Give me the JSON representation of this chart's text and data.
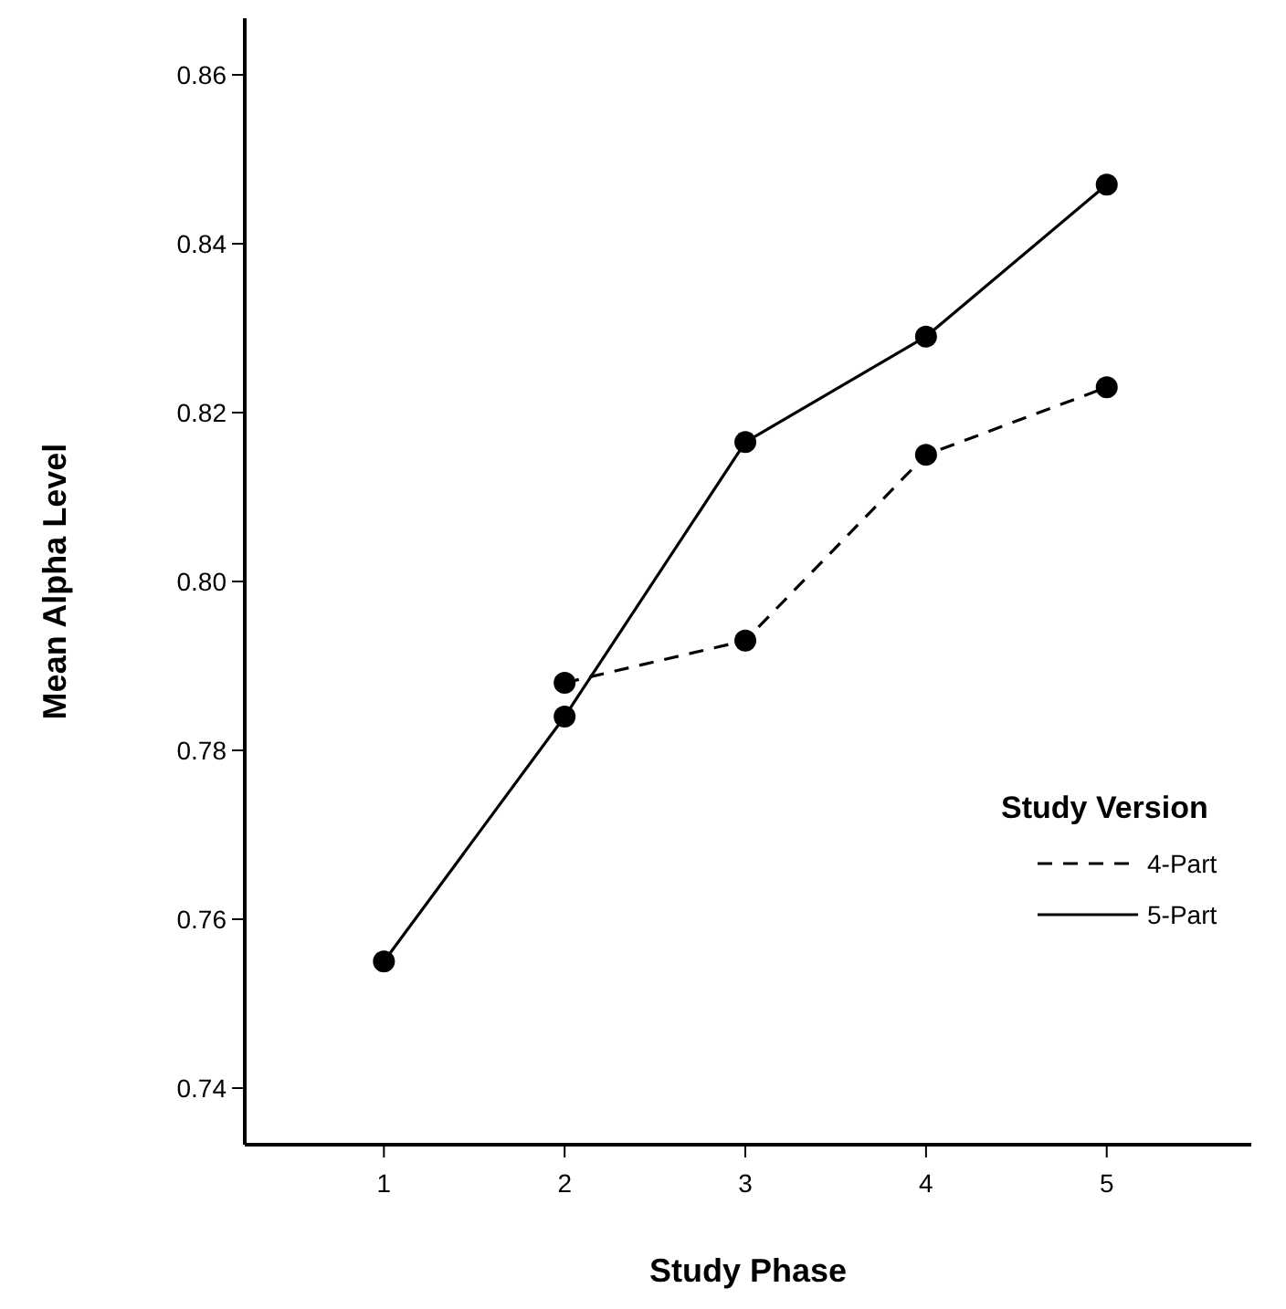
{
  "chart_data": {
    "type": "line",
    "xlabel": "Study Phase",
    "ylabel": "Mean Alpha Level",
    "legend_title": "Study Version",
    "x": [
      1,
      2,
      3,
      4,
      5
    ],
    "xlim": [
      0.23,
      5.8
    ],
    "xticks": [
      1,
      2,
      3,
      4,
      5
    ],
    "ylim": [
      0.7333,
      0.8667
    ],
    "yticks": [
      {
        "value": 0.74,
        "label": "0.74"
      },
      {
        "value": 0.76,
        "label": "0.76"
      },
      {
        "value": 0.78,
        "label": "0.78"
      },
      {
        "value": 0.8,
        "label": "0.80"
      },
      {
        "value": 0.82,
        "label": "0.82"
      },
      {
        "value": 0.84,
        "label": "0.84"
      },
      {
        "value": 0.86,
        "label": "0.86"
      }
    ],
    "marker": "circle",
    "legend": "right",
    "grid": false,
    "series": [
      {
        "name": "4-Part",
        "color": "#000000",
        "line_style": "dashed",
        "values": [
          null,
          0.788,
          0.793,
          0.815,
          0.823
        ]
      },
      {
        "name": "5-Part",
        "color": "#000000",
        "line_style": "solid",
        "values": [
          0.755,
          0.784,
          0.8165,
          0.829,
          0.847
        ]
      }
    ]
  }
}
